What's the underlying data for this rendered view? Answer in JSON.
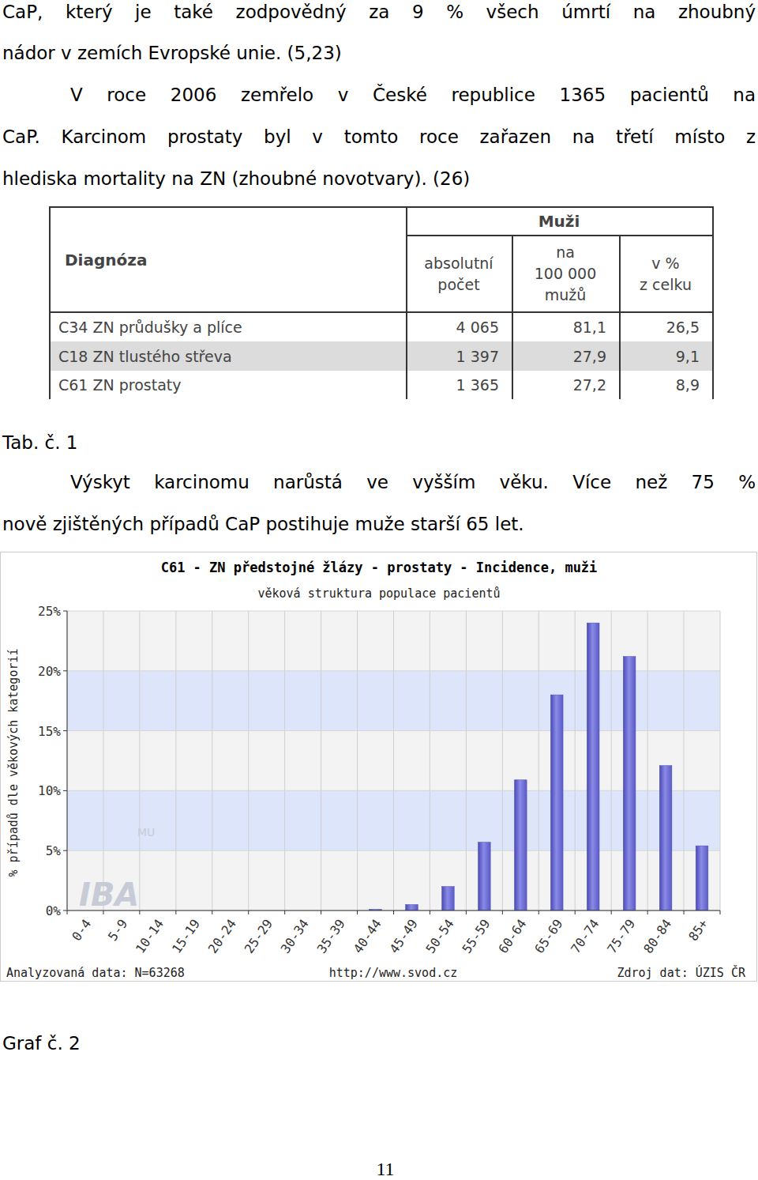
{
  "text_1": [
    [
      "CaP, který je také zodpovědný za 9 % všech úmrtí na zhoubný",
      "nádor v zemích Evropské unie. (5,23)"
    ],
    [
      "V roce 2006 zemřelo v České republice 1365 pacientů na",
      "CaP. Karcinom prostaty byl v tomto roce zařazen na třetí místo z",
      "hlediska mortality na ZN (zhoubné novotvary). (26)"
    ]
  ],
  "table": {
    "header": {
      "diagnosis": "Diagnóza",
      "group": "Muži",
      "columns": [
        [
          "absolutní",
          "počet"
        ],
        [
          "na",
          "100 000",
          "mužů"
        ],
        [
          "v %",
          "z celku"
        ]
      ]
    },
    "rows": [
      [
        "C34 ZN průdušky a plíce",
        "4 065",
        "81,1",
        "26,5"
      ],
      [
        "C18 ZN tlustého střeva",
        "1 397",
        "27,9",
        "9,1"
      ],
      [
        "C61 ZN prostaty",
        "1 365",
        "27,2",
        "8,9"
      ]
    ]
  },
  "table_caption": "Tab. č. 1",
  "text_2": [
    [
      "Výskyt karcinomu narůstá ve vyšším věku. Více než 75 %",
      "nově zjištěných případů CaP postihuje muže starší 65 let."
    ]
  ],
  "chart_data": {
    "type": "bar",
    "title": "C61 - ZN předstojné žlázy - prostaty - Incidence, muži",
    "subtitle": "věková struktura populace pacientů",
    "ylabel": "% případů dle věkových kategorií",
    "categories": [
      "0-4",
      "5-9",
      "10-14",
      "15-19",
      "20-24",
      "25-29",
      "30-34",
      "35-39",
      "40-44",
      "45-49",
      "50-54",
      "55-59",
      "60-64",
      "65-69",
      "70-74",
      "75-79",
      "80-84",
      "85+"
    ],
    "values": [
      0,
      0,
      0,
      0,
      0,
      0,
      0,
      0,
      0.1,
      0.5,
      2.0,
      5.7,
      10.9,
      18.0,
      24.0,
      21.2,
      12.1,
      5.4
    ],
    "color": "#8a8ae6",
    "ylim": [
      0,
      25
    ],
    "yticks": [
      {
        "value": 0,
        "label": "0%"
      },
      {
        "value": 5,
        "label": "5%"
      },
      {
        "value": 10,
        "label": "10%"
      },
      {
        "value": 15,
        "label": "15%"
      },
      {
        "value": 20,
        "label": "20%"
      },
      {
        "value": 25,
        "label": "25%"
      }
    ],
    "grid": true,
    "annotations": [
      "Analyzovaná data: N=63268",
      "http://www.svod.cz",
      "Zdroj dat: ÚZIS ČR",
      "IBA",
      "MU"
    ]
  },
  "chart_caption": "Graf č. 2",
  "page_number": "11"
}
